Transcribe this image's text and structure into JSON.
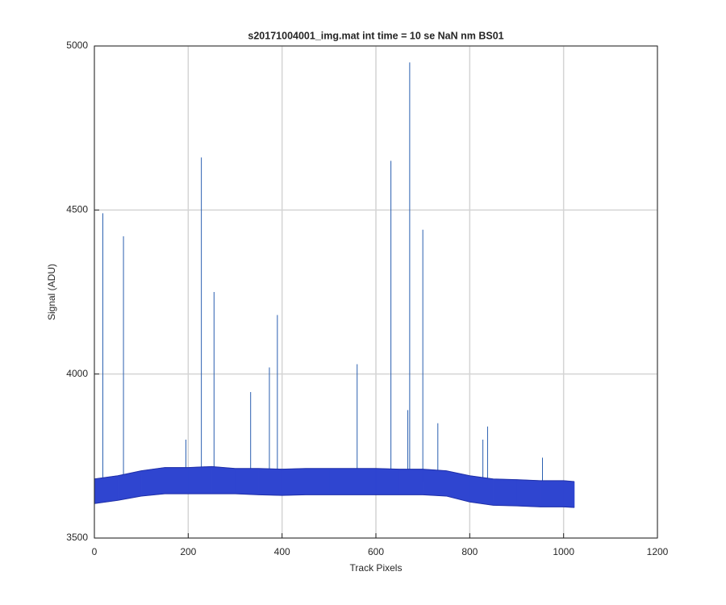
{
  "chart_data": {
    "type": "band",
    "title": "s20171004001_img.mat int time = 10 se  NaN nm BS01",
    "x_label": "Track Pixels",
    "y_label": "Signal (ADU)",
    "x": [
      0,
      50,
      100,
      150,
      200,
      250,
      300,
      350,
      400,
      450,
      500,
      550,
      600,
      650,
      700,
      750,
      800,
      850,
      900,
      950,
      1000,
      1023
    ],
    "series": [
      {
        "color": "#2f45d0",
        "values": [
          3680,
          3690,
          3705,
          3715,
          3715,
          3718,
          3712,
          3712,
          3710,
          3712,
          3712,
          3712,
          3712,
          3710,
          3710,
          3705,
          3690,
          3680,
          3678,
          3675,
          3675,
          3672
        ]
      },
      {
        "color": "#2f45d0",
        "values": [
          3605,
          3615,
          3628,
          3635,
          3635,
          3635,
          3635,
          3632,
          3630,
          3632,
          3632,
          3632,
          3632,
          3632,
          3632,
          3628,
          3610,
          3600,
          3598,
          3595,
          3595,
          3593
        ]
      }
    ],
    "spikes": {
      "color": "#2a5fb0",
      "x": [
        18,
        62,
        195,
        228,
        255,
        333,
        373,
        390,
        560,
        632,
        668,
        672,
        700,
        732,
        828,
        838,
        955
      ],
      "values": [
        4490,
        4420,
        3800,
        4660,
        4250,
        3945,
        4020,
        4180,
        4030,
        4650,
        3890,
        4950,
        4440,
        3850,
        3800,
        3840,
        3745
      ]
    },
    "xlim": [
      0,
      1200
    ],
    "xticks": [
      0,
      200,
      400,
      600,
      800,
      1000,
      1200
    ],
    "ylim": [
      3500,
      5000
    ],
    "yticks": [
      3500,
      4000,
      4500,
      5000
    ],
    "grid": true
  }
}
